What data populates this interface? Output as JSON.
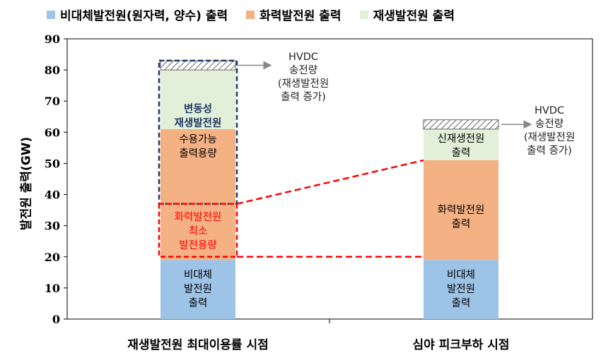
{
  "colors": {
    "nonvariable": "#9dc3e6",
    "thermal": "#f4b183",
    "renewable": "#e2f0d9",
    "hvdc": "#bfbfbf",
    "curtail_box": "#1f3864",
    "thermal_min_box": "#ff0000",
    "thermal_min_text": "#ff0000",
    "variable_text": "#1f3864"
  },
  "legend": [
    {
      "label": "비대체발전원(원자력, 양수) 출력",
      "color": "#9dc3e6"
    },
    {
      "label": "화력발전원 출력",
      "color": "#f4b183"
    },
    {
      "label": "재생발전원 출력",
      "color": "#e2f0d9"
    }
  ],
  "chart_data": {
    "type": "bar",
    "stacked": true,
    "categories": [
      "재생발전원 최대이용률 시점",
      "심야 피크부하 시점"
    ],
    "series": [
      {
        "name": "비대체발전원(원자력, 양수) 출력",
        "values": [
          19,
          19
        ]
      },
      {
        "name": "화력발전원 출력",
        "values": [
          42,
          32
        ]
      },
      {
        "name": "재생발전원 출력",
        "values": [
          19,
          10
        ]
      },
      {
        "name": "HVDC 송전량",
        "values": [
          3,
          3
        ]
      }
    ],
    "ylabel": "발전원 출력(GW)",
    "ylim": [
      0,
      90
    ],
    "yticks": [
      0,
      10,
      20,
      30,
      40,
      50,
      60,
      70,
      80,
      90
    ],
    "grid": false,
    "legend_position": "top",
    "annotations": {
      "bar1_nonvariable": "비대체\n발전원\n출력",
      "bar1_variable": "변동성\n재생발전원",
      "bar1_accept": "수용가능\n출력용량",
      "bar1_thermal_min": "화력발전원\n최소\n발전용량",
      "bar1_hvdc_note": "HVDC\n송전량\n(재생발전원\n출력 증가)",
      "bar2_nonvariable": "비대체\n발전원\n출력",
      "bar2_thermal": "화력발전원\n출력",
      "bar2_renewable": "신재생전원\n출력",
      "bar2_hvdc_note": "HVDC\n송전량\n(재생발전원\n출력 증가)"
    },
    "thermal_min_level": 37,
    "thermal_min_floor": 20,
    "bar2_thermal_top": 51
  }
}
